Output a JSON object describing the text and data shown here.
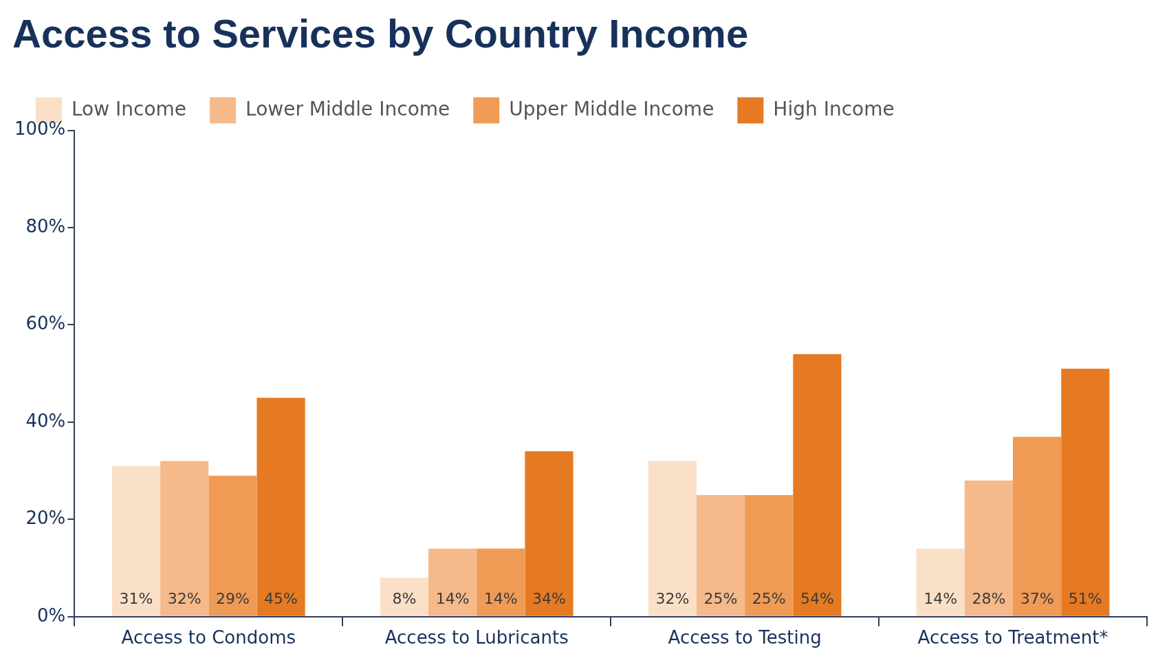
{
  "chart_data": {
    "type": "bar",
    "title": "Access to Services by Country Income",
    "categories": [
      "Access to Condoms",
      "Access to Lubricants",
      "Access to Testing",
      "Access to Treatment*"
    ],
    "series": [
      {
        "name": "Low Income",
        "color": "#fbe0c8",
        "values": [
          31,
          8,
          32,
          14
        ],
        "value_labels": [
          "31%",
          "8%",
          "32%",
          "14%"
        ]
      },
      {
        "name": "Lower Middle Income",
        "color": "#f5b98a",
        "values": [
          32,
          14,
          25,
          28
        ],
        "value_labels": [
          "32%",
          "14%",
          "25%",
          "28%"
        ]
      },
      {
        "name": "Upper Middle Income",
        "color": "#ef9b56",
        "values": [
          29,
          14,
          25,
          37
        ],
        "value_labels": [
          "29%",
          "14%",
          "25%",
          "37%"
        ]
      },
      {
        "name": "High Income",
        "color": "#e67a22",
        "values": [
          45,
          34,
          54,
          51
        ],
        "value_labels": [
          "45%",
          "34%",
          "54%",
          "51%"
        ]
      }
    ],
    "ylim": [
      0,
      100
    ],
    "yticks": [
      {
        "value": 0,
        "label": "0%"
      },
      {
        "value": 20,
        "label": "20%"
      },
      {
        "value": 40,
        "label": "40%"
      },
      {
        "value": 60,
        "label": "60%"
      },
      {
        "value": 80,
        "label": "80%"
      },
      {
        "value": 100,
        "label": "100%"
      }
    ],
    "grid": false,
    "legend": "top"
  }
}
